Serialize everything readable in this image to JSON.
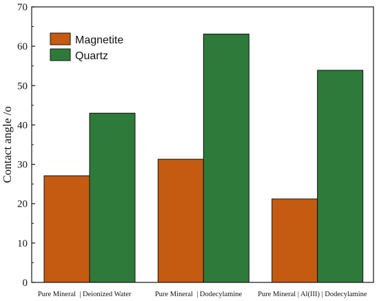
{
  "chart_data": {
    "type": "bar",
    "title": "",
    "xlabel": "",
    "ylabel": "Contact angle /o",
    "ylim": [
      0,
      70
    ],
    "yticks": [
      0,
      10,
      20,
      30,
      40,
      50,
      60,
      70
    ],
    "categories": [
      "Pure Mineral  | Deionized Water",
      "Pure Mineral  | Dodecylamine",
      "Pure Mineral | Al(III) | Dodecylamine"
    ],
    "series": [
      {
        "name": "Magnetite",
        "color": "#c55a11",
        "values": [
          27.1,
          31.3,
          21.2
        ]
      },
      {
        "name": "Quartz",
        "color": "#2e7a3a",
        "values": [
          43.0,
          63.1,
          53.9
        ]
      }
    ],
    "legend_position": "top-left",
    "grid": false
  }
}
